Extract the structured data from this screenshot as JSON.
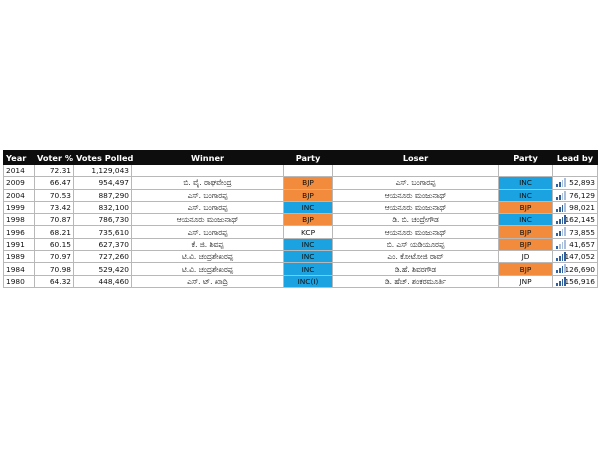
{
  "table": {
    "headers": [
      "Year",
      "Voter %",
      "Votes Polled",
      "Winner",
      "Party",
      "Loser",
      "Party",
      "Lead by"
    ],
    "rows": [
      {
        "year": "2014",
        "voter_pct": "72.31",
        "votes_polled": "1,129,043",
        "winner": "",
        "winner_party": "",
        "winner_party_color": "#ffffff",
        "loser": "",
        "loser_party": "",
        "loser_party_color": "#ffffff",
        "lead_by": "",
        "lead_level": 0
      },
      {
        "year": "2009",
        "voter_pct": "66.47",
        "votes_polled": "954,497",
        "winner": "ಬಿ. ವೈ. ರಾಘವೇಂದ್ರ",
        "winner_party": "BJP",
        "winner_party_color": "#f28c3c",
        "loser": "ಎಸ್. ಬಂಗಾರಪ್ಪ",
        "loser_party": "INC",
        "loser_party_color": "#1aa3e0",
        "lead_by": "52,893",
        "lead_level": 2
      },
      {
        "year": "2004",
        "voter_pct": "70.53",
        "votes_polled": "887,290",
        "winner": "ಎಸ್. ಬಂಗಾರಪ್ಪ",
        "winner_party": "BJP",
        "winner_party_color": "#f28c3c",
        "loser": "ಆಯನೂರು ಮಂಜುನಾಥ್",
        "loser_party": "INC",
        "loser_party_color": "#1aa3e0",
        "lead_by": "76,129",
        "lead_level": 2
      },
      {
        "year": "1999",
        "voter_pct": "73.42",
        "votes_polled": "832,100",
        "winner": "ಎಸ್. ಬಂಗಾರಪ್ಪ",
        "winner_party": "INC",
        "winner_party_color": "#1aa3e0",
        "loser": "ಆಯನೂರು ಮಂಜುನಾಥ್",
        "loser_party": "BJP",
        "loser_party_color": "#f28c3c",
        "lead_by": "98,021",
        "lead_level": 3
      },
      {
        "year": "1998",
        "voter_pct": "70.87",
        "votes_polled": "786,730",
        "winner": "ಆಯನೂರು ಮಂಜುನಾಥ್",
        "winner_party": "BJP",
        "winner_party_color": "#f28c3c",
        "loser": "ಡಿ. ಬಿ. ಚಂದ್ರೇಗೌಡ",
        "loser_party": "INC",
        "loser_party_color": "#1aa3e0",
        "lead_by": "162,145",
        "lead_level": 4
      },
      {
        "year": "1996",
        "voter_pct": "68.21",
        "votes_polled": "735,610",
        "winner": "ಎಸ್. ಬಂಗಾರಪ್ಪ",
        "winner_party": "KCP",
        "winner_party_color": "#ffffff",
        "loser": "ಆಯನೂರು ಮಂಜುನಾಥ್",
        "loser_party": "BJP",
        "loser_party_color": "#f28c3c",
        "lead_by": "73,855",
        "lead_level": 2
      },
      {
        "year": "1991",
        "voter_pct": "60.15",
        "votes_polled": "627,370",
        "winner": "ಕೆ. ಜಿ. ಶಿವಪ್ಪ",
        "winner_party": "INC",
        "winner_party_color": "#1aa3e0",
        "loser": "ಬಿ. ಎಸ್ ಯಡಿಯೂರಪ್ಪ",
        "loser_party": "BJP",
        "loser_party_color": "#f28c3c",
        "lead_by": "41,657",
        "lead_level": 1
      },
      {
        "year": "1989",
        "voter_pct": "70.97",
        "votes_polled": "727,260",
        "winner": "ಟಿ.ವಿ. ಚಂದ್ರಶೇಖರಪ್ಪ",
        "winner_party": "INC",
        "winner_party_color": "#1aa3e0",
        "loser": "ಎಂ. ಕೋಟೋಜಿ ರಾವ್",
        "loser_party": "JD",
        "loser_party_color": "#ffffff",
        "lead_by": "147,052",
        "lead_level": 4
      },
      {
        "year": "1984",
        "voter_pct": "70.98",
        "votes_polled": "529,420",
        "winner": "ಟಿ.ವಿ. ಚಂದ್ರಶೇಖರಪ್ಪ",
        "winner_party": "INC",
        "winner_party_color": "#1aa3e0",
        "loser": "ಡಿ.ಹೆ. ಶಿವರಗೌಡ",
        "loser_party": "BJP",
        "loser_party_color": "#f28c3c",
        "lead_by": "126,690",
        "lead_level": 3
      },
      {
        "year": "1980",
        "voter_pct": "64.32",
        "votes_polled": "448,460",
        "winner": "ಎಸ್. ಟ್. ಖಾದ್ರಿ",
        "winner_party": "INC(I)",
        "winner_party_color": "#1aa3e0",
        "loser": "ಡಿ. ಹೆಚ್. ಶಂಕರಮೂರ್ತಿ",
        "loser_party": "JNP",
        "loser_party_color": "#ffffff",
        "lead_by": "156,916",
        "lead_level": 4
      }
    ]
  },
  "lead_icon": "bar-chart-icon",
  "colors": {
    "header_bg": "#0d0d0d",
    "bjp": "#f28c3c",
    "inc": "#1aa3e0",
    "bar": "#2f5f9e"
  }
}
